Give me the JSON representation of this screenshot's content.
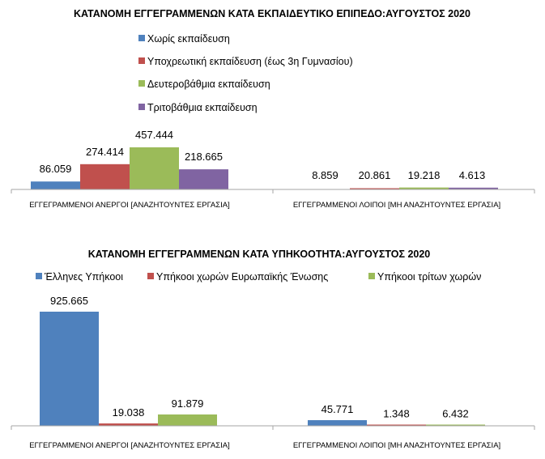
{
  "chart_data": [
    {
      "type": "bar",
      "title": "ΚΑΤΑΝΟΜΗ ΕΓΓΕΓΡΑΜΜΕΝΩΝ ΚΑΤΑ ΕΚΠΑΙΔΕΥΤΙΚΟ ΕΠΙΠΕΔΟ:ΑΥΓΟΥΣΤΟΣ 2020",
      "categories": [
        "ΕΓΓΕΓΡΑΜΜΕΝΟΙ ΑΝΕΡΓΟΙ [ΑΝΑΖΗΤΟΥΝΤΕΣ ΕΡΓΑΣΙΑ]",
        "ΕΓΓΕΓΡΑΜΜΕΝΟΙ ΛΟΙΠΟΙ [ΜΗ ΑΝΑΖΗΤΟΥΝΤΕΣ ΕΡΓΑΣΙΑ]"
      ],
      "series": [
        {
          "name": "Χωρίς εκπαίδευση",
          "color": "#4F81BD",
          "values": [
            86059,
            0
          ],
          "labels": [
            "86.059",
            ""
          ]
        },
        {
          "name": "Υποχρεωτική εκπαίδευση (έως 3η Γυμνασίου)",
          "color": "#C0504D",
          "values": [
            274414,
            8859
          ],
          "labels": [
            "274.414",
            "8.859"
          ]
        },
        {
          "name": "Δευτεροβάθμια εκπαίδευση",
          "color": "#9BBB59",
          "values": [
            457444,
            20861
          ],
          "labels": [
            "457.444",
            "20.861"
          ]
        },
        {
          "name": "Τριτοβάθμια εκπαίδευση",
          "color": "#8064A2",
          "values": [
            218665,
            19218
          ],
          "labels": [
            "218.665",
            "19.218"
          ]
        }
      ],
      "extra_labels": [
        "4.613"
      ],
      "legend_position": "top",
      "grid": false
    },
    {
      "type": "bar",
      "title": "ΚΑΤΑΝΟΜΗ ΕΓΓΕΓΡΑΜΜΕΝΩΝ ΚΑΤΑ ΥΠΗΚΟΟΤΗΤΑ:ΑΥΓΟΥΣΤΟΣ 2020",
      "categories": [
        "ΕΓΓΕΓΡΑΜΜΕΝΟΙ ΑΝΕΡΓΟΙ [ΑΝΑΖΗΤΟΥΝΤΕΣ ΕΡΓΑΣΙΑ]",
        "ΕΓΓΕΓΡΑΜΜΕΝΟΙ ΛΟΙΠΟΙ [ΜΗ ΑΝΑΖΗΤΟΥΝΤΕΣ ΕΡΓΑΣΙΑ]"
      ],
      "series": [
        {
          "name": "Έλληνες Υπήκοοι",
          "color": "#4F81BD",
          "values": [
            925665,
            45771
          ],
          "labels": [
            "925.665",
            "45.771"
          ]
        },
        {
          "name": "Υπήκοοι χωρών Ευρωπαϊκής Ένωσης",
          "color": "#C0504D",
          "values": [
            19038,
            1348
          ],
          "labels": [
            "19.038",
            "1.348"
          ]
        },
        {
          "name": "Υπήκοοι τρίτων χωρών",
          "color": "#9BBB59",
          "values": [
            91879,
            6432
          ],
          "labels": [
            "91.879",
            "6.432"
          ]
        }
      ],
      "legend_position": "top",
      "grid": false
    }
  ]
}
